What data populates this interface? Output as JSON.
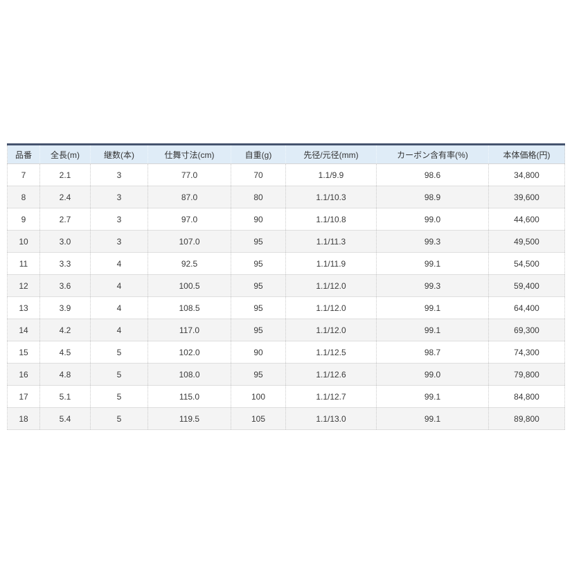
{
  "table": {
    "headers": [
      "品番",
      "全長(m)",
      "継数(本)",
      "仕舞寸法(cm)",
      "自重(g)",
      "先径/元径(mm)",
      "カーボン含有率(%)",
      "本体価格(円)"
    ],
    "rows": [
      [
        "7",
        "2.1",
        "3",
        "77.0",
        "70",
        "1.1/9.9",
        "98.6",
        "34,800"
      ],
      [
        "8",
        "2.4",
        "3",
        "87.0",
        "80",
        "1.1/10.3",
        "98.9",
        "39,600"
      ],
      [
        "9",
        "2.7",
        "3",
        "97.0",
        "90",
        "1.1/10.8",
        "99.0",
        "44,600"
      ],
      [
        "10",
        "3.0",
        "3",
        "107.0",
        "95",
        "1.1/11.3",
        "99.3",
        "49,500"
      ],
      [
        "11",
        "3.3",
        "4",
        "92.5",
        "95",
        "1.1/11.9",
        "99.1",
        "54,500"
      ],
      [
        "12",
        "3.6",
        "4",
        "100.5",
        "95",
        "1.1/12.0",
        "99.3",
        "59,400"
      ],
      [
        "13",
        "3.9",
        "4",
        "108.5",
        "95",
        "1.1/12.0",
        "99.1",
        "64,400"
      ],
      [
        "14",
        "4.2",
        "4",
        "117.0",
        "95",
        "1.1/12.0",
        "99.1",
        "69,300"
      ],
      [
        "15",
        "4.5",
        "5",
        "102.0",
        "90",
        "1.1/12.5",
        "98.7",
        "74,300"
      ],
      [
        "16",
        "4.8",
        "5",
        "108.0",
        "95",
        "1.1/12.6",
        "99.0",
        "79,800"
      ],
      [
        "17",
        "5.1",
        "5",
        "115.0",
        "100",
        "1.1/12.7",
        "99.1",
        "84,800"
      ],
      [
        "18",
        "5.4",
        "5",
        "119.5",
        "105",
        "1.1/13.0",
        "99.1",
        "89,800"
      ]
    ]
  },
  "colors": {
    "header_top_border": "#45536e",
    "header_background": "#dfecf7",
    "row_alt_background": "#f4f4f4",
    "text": "#333333"
  }
}
